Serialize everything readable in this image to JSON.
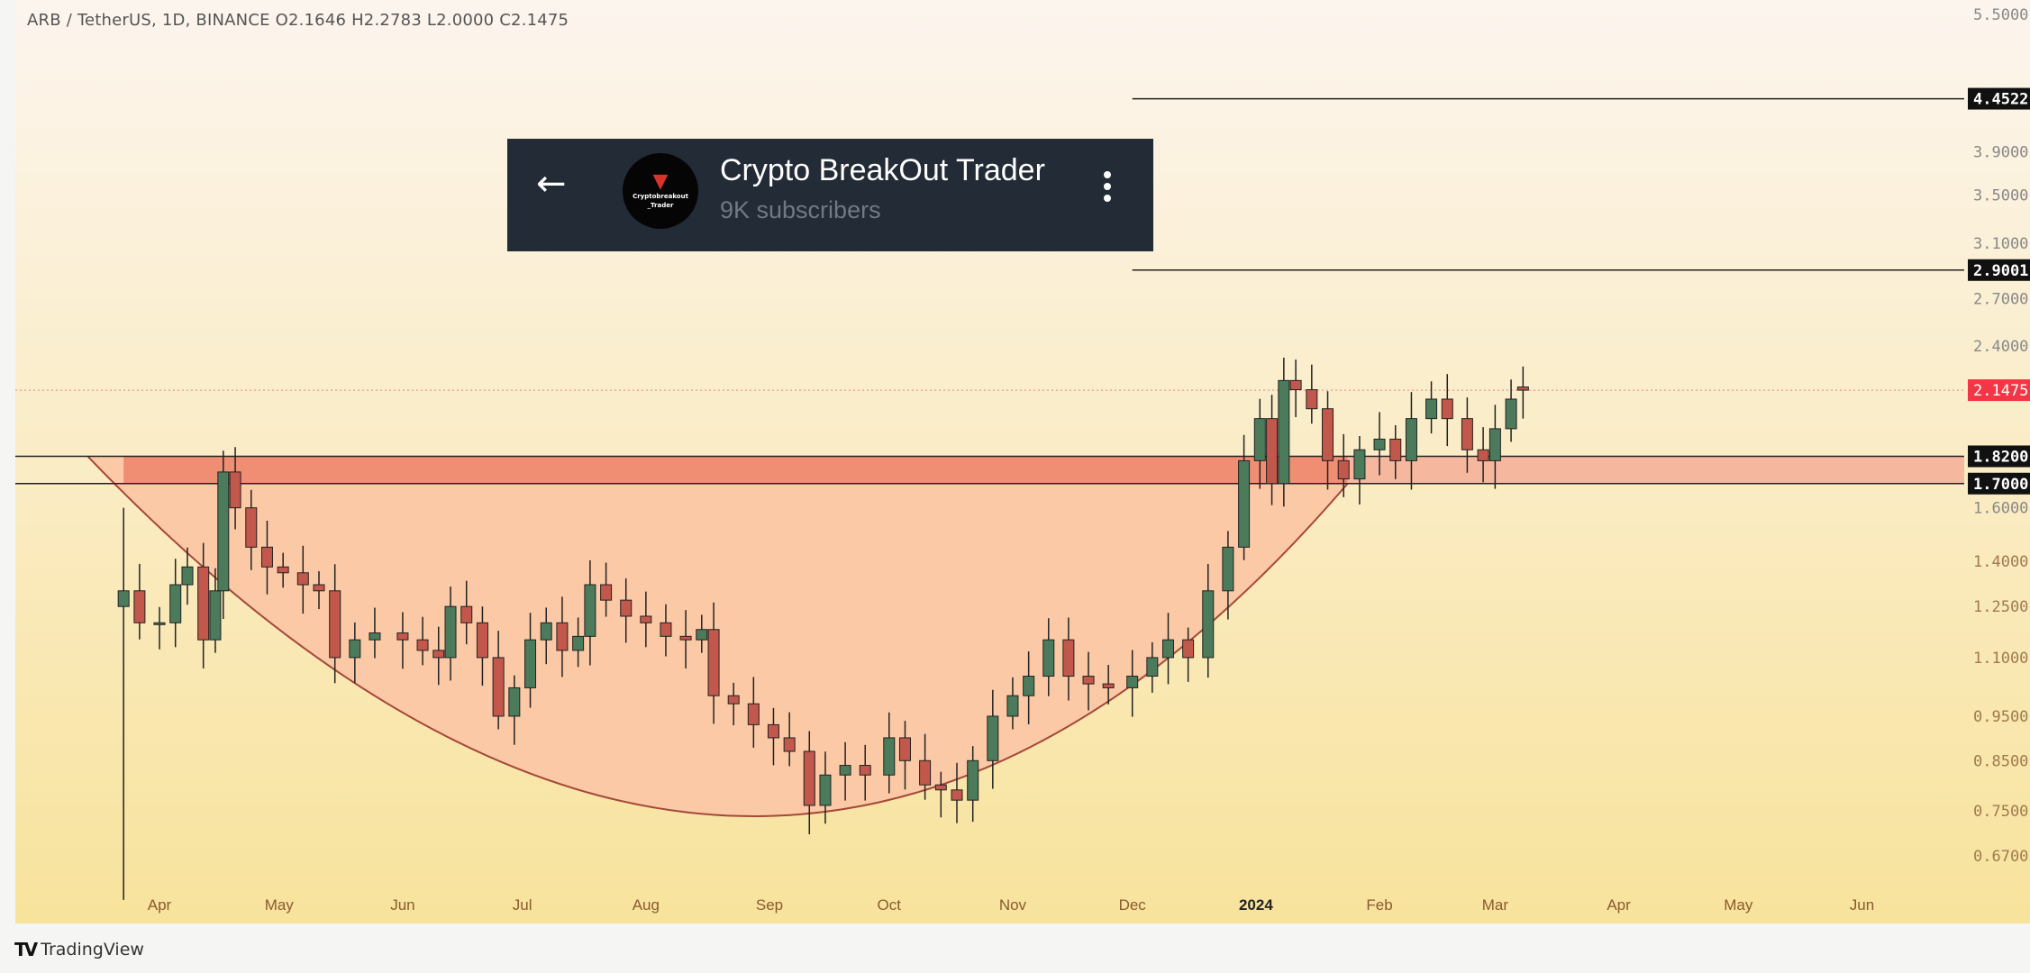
{
  "header": {
    "symbol_line": "ARB / TetherUS, 1D, BINANCE  O2.1646  H2.2783  L2.0000  C2.1475"
  },
  "overlay": {
    "channel_name": "Crypto BreakOut Trader",
    "subscribers": "9K subscribers",
    "avatar_text": "Cryptobreakout _Trader",
    "back_icon": "arrow-left-icon",
    "menu_icon": "more-vertical-icon"
  },
  "footer": {
    "brand": "TradingView",
    "logo": "TV"
  },
  "colors": {
    "bg_top": "#fcf5ee",
    "bg_bottom": "#f8e39c",
    "zone": "#ef8e72",
    "zone_light": "#f5b79e",
    "cup_fill": "#fbc9a5",
    "cup_line": "#a5473a",
    "up": "#4b7b5b",
    "down": "#c2574b",
    "last_price": "#f23645"
  },
  "chart_data": {
    "type": "candlestick",
    "scale": "log",
    "ylim": [
      0.62,
      5.6
    ],
    "y_ticks": [
      "5.5000",
      "3.9000",
      "3.5000",
      "3.1000",
      "2.7000",
      "2.4000",
      "1.6000",
      "1.4000",
      "1.2500",
      "1.1000",
      "0.9500",
      "0.8500",
      "0.7500",
      "0.6700"
    ],
    "x_ticks": [
      {
        "label": "Apr",
        "date": "2023-04-01"
      },
      {
        "label": "May",
        "date": "2023-05-01"
      },
      {
        "label": "Jun",
        "date": "2023-06-01"
      },
      {
        "label": "Jul",
        "date": "2023-07-01"
      },
      {
        "label": "Aug",
        "date": "2023-08-01"
      },
      {
        "label": "Sep",
        "date": "2023-09-01"
      },
      {
        "label": "Oct",
        "date": "2023-10-01"
      },
      {
        "label": "Nov",
        "date": "2023-11-01"
      },
      {
        "label": "Dec",
        "date": "2023-12-01"
      },
      {
        "label": "2024",
        "date": "2024-01-01",
        "bold": true
      },
      {
        "label": "Feb",
        "date": "2024-02-01"
      },
      {
        "label": "Mar",
        "date": "2024-03-01"
      },
      {
        "label": "Apr",
        "date": "2024-04-01"
      },
      {
        "label": "May",
        "date": "2024-05-01"
      },
      {
        "label": "Jun",
        "date": "2024-06-01"
      }
    ],
    "levels": [
      {
        "label": "4.4522",
        "value": 4.4522,
        "from": "2023-12-01"
      },
      {
        "label": "2.9001",
        "value": 2.9001,
        "from": "2023-12-01"
      },
      {
        "label": "1.8200",
        "value": 1.82,
        "from": "2023-03-23"
      },
      {
        "label": "1.7000",
        "value": 1.7,
        "from": "2023-03-23"
      }
    ],
    "last_price": {
      "label": "2.1475",
      "value": 2.1475
    },
    "zone": {
      "top": 1.82,
      "bottom": 1.7,
      "from": "2023-03-23"
    },
    "cup": {
      "start": "2023-03-14",
      "bottom_date": "2023-08-31",
      "bottom_value": 0.74,
      "end": "2024-01-24"
    },
    "candles": [
      {
        "d": "2023-03-23",
        "o": 1.25,
        "h": 1.6,
        "l": 0.6,
        "c": 1.3
      },
      {
        "d": "2023-03-27",
        "c": 1.2
      },
      {
        "d": "2023-04-01",
        "c": 1.2
      },
      {
        "d": "2023-04-05",
        "c": 1.32
      },
      {
        "d": "2023-04-08",
        "c": 1.38
      },
      {
        "d": "2023-04-12",
        "c": 1.15
      },
      {
        "d": "2023-04-15",
        "c": 1.3
      },
      {
        "d": "2023-04-17",
        "c": 1.75
      },
      {
        "d": "2023-04-20",
        "c": 1.6
      },
      {
        "d": "2023-04-24",
        "c": 1.45
      },
      {
        "d": "2023-04-28",
        "c": 1.38
      },
      {
        "d": "2023-05-02",
        "c": 1.36
      },
      {
        "d": "2023-05-07",
        "c": 1.32
      },
      {
        "d": "2023-05-11",
        "c": 1.3
      },
      {
        "d": "2023-05-15",
        "c": 1.1
      },
      {
        "d": "2023-05-20",
        "c": 1.15
      },
      {
        "d": "2023-05-25",
        "c": 1.17
      },
      {
        "d": "2023-06-01",
        "c": 1.15
      },
      {
        "d": "2023-06-06",
        "c": 1.12
      },
      {
        "d": "2023-06-10",
        "c": 1.1
      },
      {
        "d": "2023-06-13",
        "c": 1.25
      },
      {
        "d": "2023-06-17",
        "c": 1.2
      },
      {
        "d": "2023-06-21",
        "c": 1.1
      },
      {
        "d": "2023-06-25",
        "c": 0.95
      },
      {
        "d": "2023-06-29",
        "c": 1.02
      },
      {
        "d": "2023-07-03",
        "c": 1.15
      },
      {
        "d": "2023-07-07",
        "c": 1.2
      },
      {
        "d": "2023-07-11",
        "c": 1.12
      },
      {
        "d": "2023-07-15",
        "c": 1.16
      },
      {
        "d": "2023-07-18",
        "c": 1.32
      },
      {
        "d": "2023-07-22",
        "c": 1.27
      },
      {
        "d": "2023-07-27",
        "c": 1.22
      },
      {
        "d": "2023-08-01",
        "c": 1.2
      },
      {
        "d": "2023-08-06",
        "c": 1.16
      },
      {
        "d": "2023-08-11",
        "c": 1.15
      },
      {
        "d": "2023-08-15",
        "c": 1.18
      },
      {
        "d": "2023-08-18",
        "c": 1.0
      },
      {
        "d": "2023-08-23",
        "c": 0.98
      },
      {
        "d": "2023-08-28",
        "c": 0.93
      },
      {
        "d": "2023-09-02",
        "c": 0.9
      },
      {
        "d": "2023-09-06",
        "c": 0.87
      },
      {
        "d": "2023-09-11",
        "c": 0.76
      },
      {
        "d": "2023-09-15",
        "c": 0.82
      },
      {
        "d": "2023-09-20",
        "c": 0.84
      },
      {
        "d": "2023-09-25",
        "c": 0.82
      },
      {
        "d": "2023-10-01",
        "c": 0.9
      },
      {
        "d": "2023-10-05",
        "c": 0.85
      },
      {
        "d": "2023-10-10",
        "c": 0.8
      },
      {
        "d": "2023-10-14",
        "c": 0.79
      },
      {
        "d": "2023-10-18",
        "c": 0.77
      },
      {
        "d": "2023-10-22",
        "c": 0.85
      },
      {
        "d": "2023-10-27",
        "c": 0.95
      },
      {
        "d": "2023-11-01",
        "c": 1.0
      },
      {
        "d": "2023-11-05",
        "c": 1.05
      },
      {
        "d": "2023-11-10",
        "c": 1.15
      },
      {
        "d": "2023-11-15",
        "c": 1.05
      },
      {
        "d": "2023-11-20",
        "c": 1.03
      },
      {
        "d": "2023-11-25",
        "c": 1.02
      },
      {
        "d": "2023-12-01",
        "c": 1.05
      },
      {
        "d": "2023-12-06",
        "c": 1.1
      },
      {
        "d": "2023-12-10",
        "c": 1.15
      },
      {
        "d": "2023-12-15",
        "c": 1.1
      },
      {
        "d": "2023-12-20",
        "c": 1.3
      },
      {
        "d": "2023-12-25",
        "c": 1.45
      },
      {
        "d": "2023-12-29",
        "c": 1.8
      },
      {
        "d": "2024-01-02",
        "c": 2.0
      },
      {
        "d": "2024-01-05",
        "c": 1.7
      },
      {
        "d": "2024-01-08",
        "c": 2.2
      },
      {
        "d": "2024-01-11",
        "c": 2.15
      },
      {
        "d": "2024-01-15",
        "c": 2.05
      },
      {
        "d": "2024-01-19",
        "c": 1.8
      },
      {
        "d": "2024-01-23",
        "c": 1.72
      },
      {
        "d": "2024-01-27",
        "c": 1.85
      },
      {
        "d": "2024-02-01",
        "c": 1.9
      },
      {
        "d": "2024-02-05",
        "c": 1.8
      },
      {
        "d": "2024-02-09",
        "c": 2.0
      },
      {
        "d": "2024-02-14",
        "c": 2.1
      },
      {
        "d": "2024-02-18",
        "c": 2.0
      },
      {
        "d": "2024-02-23",
        "c": 1.85
      },
      {
        "d": "2024-02-27",
        "c": 1.8
      },
      {
        "d": "2024-03-01",
        "c": 1.95
      },
      {
        "d": "2024-03-05",
        "c": 2.1
      },
      {
        "d": "2024-03-08",
        "o": 2.1646,
        "h": 2.2783,
        "l": 2.0,
        "c": 2.1475
      }
    ]
  }
}
